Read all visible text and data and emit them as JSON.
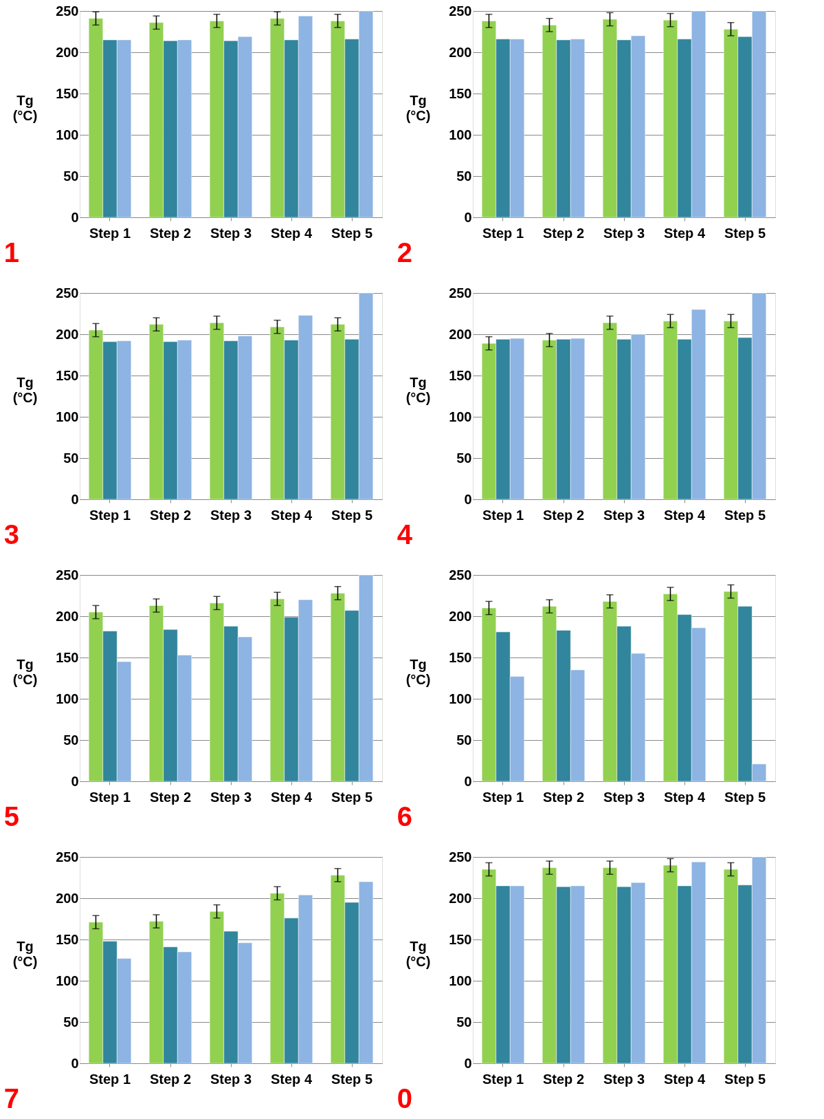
{
  "chart_data": [
    {
      "type": "bar",
      "title": "1",
      "ylabel": "Tg (°C)",
      "categories": [
        "Step 1",
        "Step 2",
        "Step 3",
        "Step 4",
        "Step 5"
      ],
      "ylim": [
        0,
        250
      ],
      "yticks": [
        0,
        50,
        100,
        150,
        200,
        250
      ],
      "grid": "y",
      "series": [
        {
          "color": "#92d050",
          "values": [
            241,
            236,
            238,
            241,
            238
          ],
          "errors": [
            8,
            8,
            8,
            8,
            8
          ]
        },
        {
          "color": "#31859c",
          "values": [
            215,
            214,
            214,
            215,
            216
          ]
        },
        {
          "color": "#8db4e2",
          "values": [
            215,
            215,
            219,
            244,
            250
          ]
        }
      ]
    },
    {
      "type": "bar",
      "title": "2",
      "ylabel": "Tg (°C)",
      "categories": [
        "Step 1",
        "Step 2",
        "Step 3",
        "Step 4",
        "Step 5"
      ],
      "ylim": [
        0,
        250
      ],
      "yticks": [
        0,
        50,
        100,
        150,
        200,
        250
      ],
      "grid": "y",
      "series": [
        {
          "color": "#92d050",
          "values": [
            238,
            233,
            240,
            239,
            228
          ],
          "errors": [
            8,
            8,
            8,
            8,
            8
          ]
        },
        {
          "color": "#31859c",
          "values": [
            216,
            215,
            215,
            216,
            219
          ]
        },
        {
          "color": "#8db4e2",
          "values": [
            216,
            216,
            220,
            250,
            250
          ]
        }
      ]
    },
    {
      "type": "bar",
      "title": "3",
      "ylabel": "Tg (°C)",
      "categories": [
        "Step 1",
        "Step 2",
        "Step 3",
        "Step 4",
        "Step 5"
      ],
      "ylim": [
        0,
        250
      ],
      "yticks": [
        0,
        50,
        100,
        150,
        200,
        250
      ],
      "grid": "y",
      "series": [
        {
          "color": "#92d050",
          "values": [
            205,
            212,
            214,
            209,
            212
          ],
          "errors": [
            8,
            8,
            8,
            8,
            8
          ]
        },
        {
          "color": "#31859c",
          "values": [
            191,
            191,
            192,
            193,
            194
          ]
        },
        {
          "color": "#8db4e2",
          "values": [
            192,
            193,
            198,
            223,
            250
          ]
        }
      ]
    },
    {
      "type": "bar",
      "title": "4",
      "ylabel": "Tg (°C)",
      "categories": [
        "Step 1",
        "Step 2",
        "Step 3",
        "Step 4",
        "Step 5"
      ],
      "ylim": [
        0,
        250
      ],
      "yticks": [
        0,
        50,
        100,
        150,
        200,
        250
      ],
      "grid": "y",
      "series": [
        {
          "color": "#92d050",
          "values": [
            189,
            193,
            214,
            216,
            216
          ],
          "errors": [
            8,
            8,
            8,
            8,
            8
          ]
        },
        {
          "color": "#31859c",
          "values": [
            194,
            194,
            194,
            194,
            196
          ]
        },
        {
          "color": "#8db4e2",
          "values": [
            195,
            195,
            200,
            230,
            250
          ]
        }
      ]
    },
    {
      "type": "bar",
      "title": "5",
      "ylabel": "Tg (°C)",
      "categories": [
        "Step 1",
        "Step 2",
        "Step 3",
        "Step 4",
        "Step 5"
      ],
      "ylim": [
        0,
        250
      ],
      "yticks": [
        0,
        50,
        100,
        150,
        200,
        250
      ],
      "grid": "y",
      "series": [
        {
          "color": "#92d050",
          "values": [
            205,
            213,
            216,
            221,
            228
          ],
          "errors": [
            8,
            8,
            8,
            8,
            8
          ]
        },
        {
          "color": "#31859c",
          "values": [
            182,
            184,
            188,
            199,
            207
          ]
        },
        {
          "color": "#8db4e2",
          "values": [
            145,
            153,
            175,
            220,
            250
          ]
        }
      ]
    },
    {
      "type": "bar",
      "title": "6",
      "ylabel": "Tg (°C)",
      "categories": [
        "Step 1",
        "Step 2",
        "Step 3",
        "Step 4",
        "Step 5"
      ],
      "ylim": [
        0,
        250
      ],
      "yticks": [
        0,
        50,
        100,
        150,
        200,
        250
      ],
      "grid": "y",
      "series": [
        {
          "color": "#92d050",
          "values": [
            210,
            212,
            218,
            227,
            230
          ],
          "errors": [
            8,
            8,
            8,
            8,
            8
          ]
        },
        {
          "color": "#31859c",
          "values": [
            181,
            183,
            188,
            202,
            212
          ]
        },
        {
          "color": "#8db4e2",
          "values": [
            127,
            135,
            155,
            186,
            21
          ]
        }
      ]
    },
    {
      "type": "bar",
      "title": "7",
      "ylabel": "Tg (°C)",
      "categories": [
        "Step 1",
        "Step 2",
        "Step 3",
        "Step 4",
        "Step 5"
      ],
      "ylim": [
        0,
        250
      ],
      "yticks": [
        0,
        50,
        100,
        150,
        200,
        250
      ],
      "grid": "y",
      "series": [
        {
          "color": "#92d050",
          "values": [
            171,
            172,
            184,
            206,
            228
          ],
          "errors": [
            8,
            8,
            8,
            8,
            8
          ]
        },
        {
          "color": "#31859c",
          "values": [
            148,
            141,
            160,
            176,
            195
          ]
        },
        {
          "color": "#8db4e2",
          "values": [
            127,
            135,
            146,
            204,
            220
          ]
        }
      ]
    },
    {
      "type": "bar",
      "title": "0",
      "ylabel": "Tg (°C)",
      "categories": [
        "Step 1",
        "Step 2",
        "Step 3",
        "Step 4",
        "Step 5"
      ],
      "ylim": [
        0,
        250
      ],
      "yticks": [
        0,
        50,
        100,
        150,
        200,
        250
      ],
      "grid": "y",
      "series": [
        {
          "color": "#92d050",
          "values": [
            235,
            237,
            237,
            240,
            235
          ],
          "errors": [
            8,
            8,
            8,
            8,
            8
          ]
        },
        {
          "color": "#31859c",
          "values": [
            215,
            214,
            214,
            215,
            216
          ]
        },
        {
          "color": "#8db4e2",
          "values": [
            215,
            215,
            219,
            244,
            250
          ]
        }
      ]
    }
  ]
}
